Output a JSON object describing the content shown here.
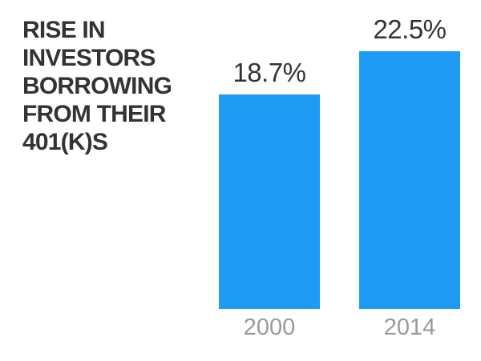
{
  "chart_data": {
    "type": "bar",
    "title": "RISE IN INVESTORS BORROWING FROM THEIR 401(K)S",
    "categories": [
      "2000",
      "2014"
    ],
    "values": [
      18.7,
      22.5
    ],
    "value_labels": [
      "18.7%",
      "22.5%"
    ],
    "ylim": [
      0,
      25
    ],
    "grid": false,
    "legend": false,
    "axis_lines": false,
    "legend_position": "none",
    "colors": {
      "bar": "#1d9bf5",
      "title": "#333333",
      "value_label": "#333333",
      "category_label": "#98999d",
      "background": "#ffffff"
    }
  }
}
